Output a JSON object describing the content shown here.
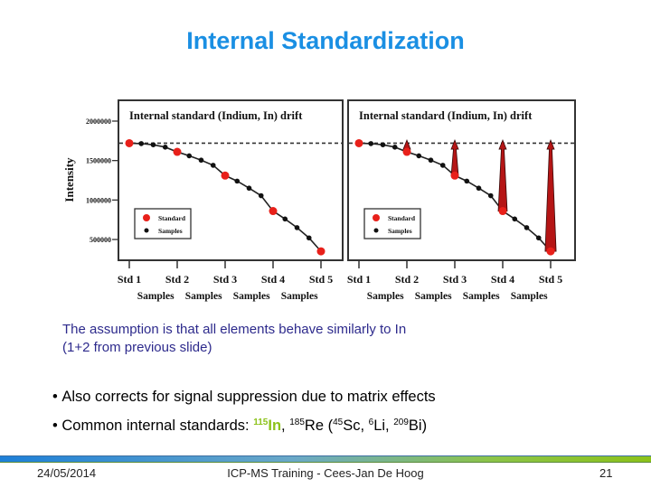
{
  "slide": {
    "title": "Internal Standardization",
    "caption_line1": "The assumption is that all elements behave similarly to In",
    "caption_line2": "(1+2 from previous slide)",
    "bullets": [
      {
        "text": "Also corrects for signal suppression due to matrix effects"
      },
      {
        "prefix": "Common internal standards: ",
        "highlight_sup": "115",
        "highlight_el": "In",
        "sep1": ", ",
        "sup2": "185",
        "el2": "Re (",
        "sup3": "45",
        "el3": "Sc, ",
        "sup4": "6",
        "el4": "Li, ",
        "sup5": "209",
        "el5": "Bi)"
      }
    ],
    "footer": {
      "date": "24/05/2014",
      "center": "ICP-MS Training - Cees-Jan De Hoog",
      "page": "21"
    },
    "colors": {
      "title": "#1a8fe3",
      "caption": "#2d2a8c",
      "highlight": "#8cc21a",
      "standard": "#e8201a",
      "sample": "#111111",
      "arrow": "#b51515"
    }
  },
  "chart_data": [
    {
      "type": "line",
      "title": "Internal standard (Indium, In) drift",
      "xlabel": "",
      "ylabel": "Intensity",
      "ylim": [
        250000,
        2100000
      ],
      "yticks": [
        500000,
        1000000,
        1500000,
        2000000
      ],
      "ytick_labels": [
        "500000",
        "1000000",
        "1500000",
        "2000000"
      ],
      "x_tick_labels": [
        "Std 1",
        "Std 2",
        "Std 3",
        "Std 4",
        "Std 5"
      ],
      "x_sub_labels": [
        "Samples",
        "Samples",
        "Samples",
        "Samples"
      ],
      "reference_line": {
        "style": "dashed",
        "y": 1720000
      },
      "legend": {
        "position": "lower left",
        "entries": [
          "Standard",
          "Samples"
        ]
      },
      "grid": false,
      "series": [
        {
          "name": "Standard",
          "x": [
            0,
            4,
            8,
            12,
            16
          ],
          "values": [
            1720000,
            1610000,
            1310000,
            860000,
            350000
          ]
        },
        {
          "name": "Samples",
          "x": [
            1,
            2,
            3,
            5,
            6,
            7,
            9,
            10,
            11,
            13,
            14,
            15
          ],
          "values": [
            1715000,
            1700000,
            1670000,
            1560000,
            1505000,
            1440000,
            1240000,
            1150000,
            1055000,
            760000,
            650000,
            520000
          ]
        }
      ],
      "annotations": []
    },
    {
      "type": "line",
      "title": "Internal standard (Indium, In) drift",
      "xlabel": "",
      "ylabel": "",
      "ylim": [
        250000,
        2100000
      ],
      "x_tick_labels": [
        "Std 1",
        "Std 2",
        "Std 3",
        "Std 4",
        "Std 5"
      ],
      "x_sub_labels": [
        "Samples",
        "Samples",
        "Samples",
        "Samples"
      ],
      "reference_line": {
        "style": "dashed",
        "y": 1720000
      },
      "legend": {
        "position": "lower left",
        "entries": [
          "Standard",
          "Samples"
        ]
      },
      "grid": false,
      "series": [
        {
          "name": "Standard",
          "x": [
            0,
            4,
            8,
            12,
            16
          ],
          "values": [
            1720000,
            1610000,
            1310000,
            860000,
            350000
          ]
        },
        {
          "name": "Samples",
          "x": [
            1,
            2,
            3,
            5,
            6,
            7,
            9,
            10,
            11,
            13,
            14,
            15
          ],
          "values": [
            1715000,
            1700000,
            1670000,
            1560000,
            1505000,
            1440000,
            1240000,
            1150000,
            1055000,
            760000,
            650000,
            520000
          ]
        }
      ],
      "annotations": [
        {
          "type": "correction-arrow",
          "at": "Std 2",
          "from": 1610000,
          "to": 1690000
        },
        {
          "type": "correction-arrow",
          "at": "Std 3",
          "from": 1310000,
          "to": 1690000
        },
        {
          "type": "correction-arrow",
          "at": "Std 4",
          "from": 860000,
          "to": 1690000
        },
        {
          "type": "correction-arrow",
          "at": "Std 5",
          "from": 350000,
          "to": 1690000
        }
      ]
    }
  ]
}
